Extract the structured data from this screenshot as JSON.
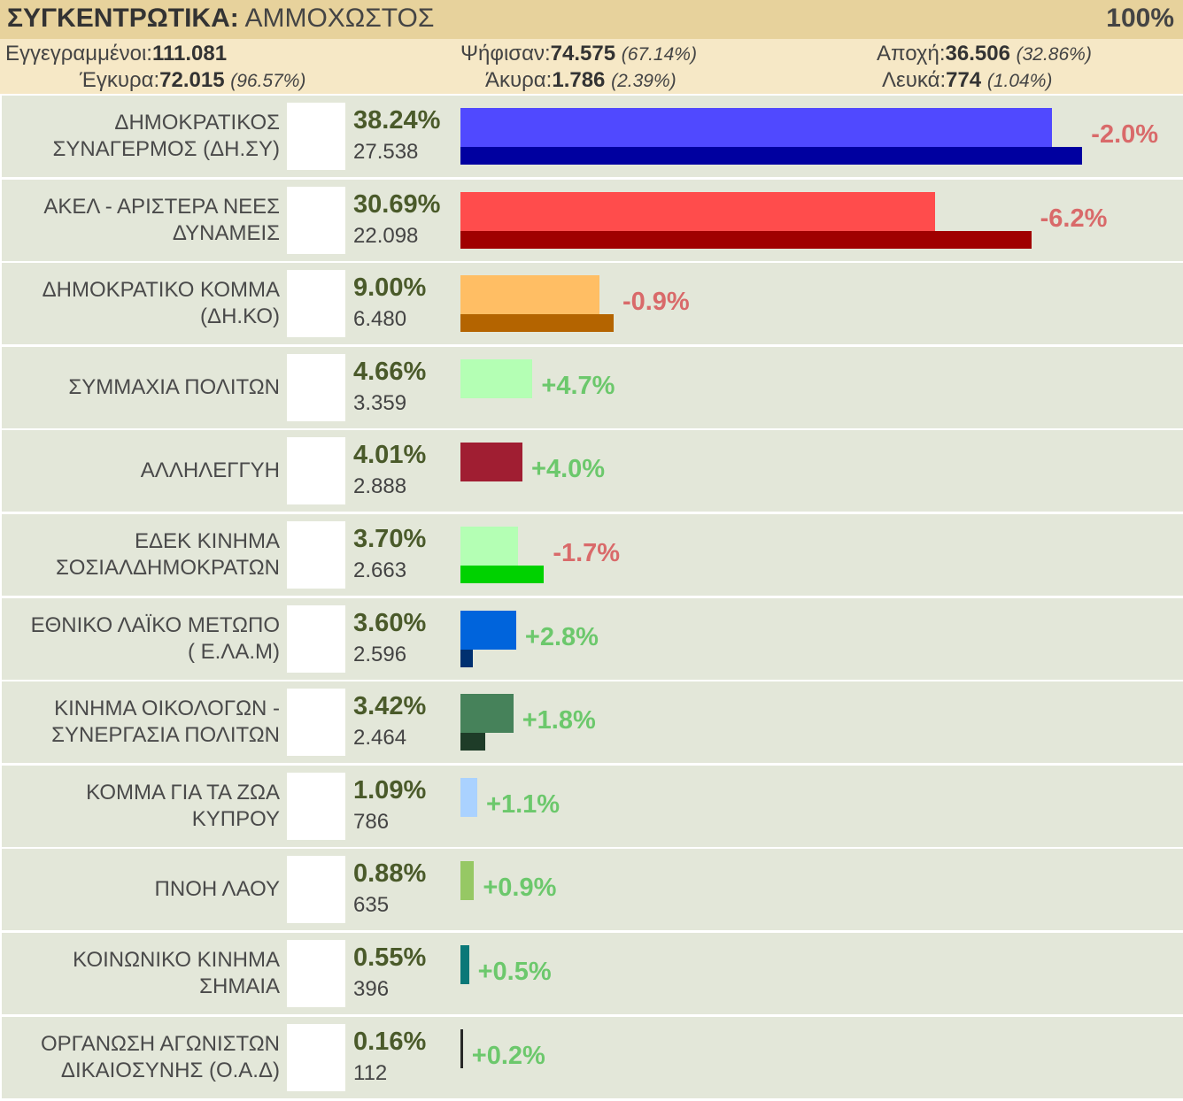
{
  "header": {
    "title_bold": "ΣΥΓΚΕΝΤΡΩΤΙΚΑ:",
    "title_rest": "ΑΜΜΟΧΩΣΤΟΣ",
    "counted": "100%"
  },
  "stats": {
    "registered_label": "Εγγεγραμμένοι:",
    "registered_value": "111.081",
    "voted_label": "Ψήφισαν:",
    "voted_value": "74.575",
    "voted_pct": "(67.14%)",
    "abstention_label": "Αποχή:",
    "abstention_value": "36.506",
    "abstention_pct": "(32.86%)",
    "valid_label": "Έγκυρα:",
    "valid_value": "72.015",
    "valid_pct": "(96.57%)",
    "invalid_label": "Άκυρα:",
    "invalid_value": "1.786",
    "invalid_pct": "(2.39%)",
    "blank_label": "Λευκά:",
    "blank_value": "774",
    "blank_pct": "(1.04%)"
  },
  "chart_data": {
    "type": "bar",
    "categories": [
      "ΔΗΜΟΚΡΑΤΙΚΟΣ ΣΥΝΑΓΕΡΜΟΣ (ΔΗ.ΣΥ)",
      "ΑΚΕΛ - ΑΡΙΣΤΕΡΑ ΝΕΕΣ ΔΥΝΑΜΕΙΣ",
      "ΔΗΜΟΚΡΑΤΙΚΟ ΚΟΜΜΑ (ΔΗ.ΚΟ)",
      "ΣΥΜΜΑΧΙΑ ΠΟΛΙΤΩΝ",
      "ΑΛΛΗΛΕΓΓΥΗ",
      "ΕΔΕΚ ΚΙΝΗΜΑ ΣΟΣΙΑΛΔΗΜΟΚΡΑΤΩΝ",
      "ΕΘΝΙΚΟ ΛΑΪΚΟ ΜΕΤΩΠΟ ( Ε.ΛΑ.Μ)",
      "ΚΙΝΗΜΑ ΟΙΚΟΛΟΓΩΝ - ΣΥΝΕΡΓΑΣΙΑ ΠΟΛΙΤΩΝ",
      "ΚΟΜΜΑ ΓΙΑ ΤΑ ΖΩΑ ΚΥΠΡΟΥ",
      "ΠΝΟΗ ΛΑΟΥ",
      "ΚΟΙΝΩΝΙΚΟ ΚΙΝΗΜΑ ΣΗΜΑΙΑ",
      "ΟΡΓΑΝΩΣΗ ΑΓΩΝΙΣΤΩΝ ΔΙΚΑΙΟΣΥΝΗΣ (Ο.Α.Δ)"
    ],
    "parties": [
      {
        "name_lines": [
          "ΔΗΜΟΚΡΑΤΙΚΟΣ",
          "ΣΥΝΑΓΕΡΜΟΣ (ΔΗ.ΣΥ)"
        ],
        "pct_label": "38.24%",
        "votes_label": "27.538",
        "pct": 38.24,
        "prev_pct": 40.2,
        "change_label": "-2.0%",
        "color": "#5049ff",
        "prev_color": "#0000a0",
        "logo": "dhsy-logo"
      },
      {
        "name_lines": [
          "ΑΚΕΛ - ΑΡΙΣΤΕΡΑ ΝΕΕΣ",
          "ΔΥΝΑΜΕΙΣ"
        ],
        "pct_label": "30.69%",
        "votes_label": "22.098",
        "pct": 30.69,
        "prev_pct": 36.9,
        "change_label": "-6.2%",
        "color": "#ff4c4c",
        "prev_color": "#a00000",
        "logo": "akel-logo"
      },
      {
        "name_lines": [
          "ΔΗΜΟΚΡΑΤΙΚΟ ΚΟΜΜΑ",
          "(ΔΗ.ΚΟ)"
        ],
        "pct_label": "9.00%",
        "votes_label": "6.480",
        "pct": 9.0,
        "prev_pct": 9.9,
        "change_label": "-0.9%",
        "color": "#ffbe64",
        "prev_color": "#b46400",
        "logo": "dhko-logo"
      },
      {
        "name_lines": [
          "ΣΥΜΜΑΧΙΑ ΠΟΛΙΤΩΝ"
        ],
        "pct_label": "4.66%",
        "votes_label": "3.359",
        "pct": 4.66,
        "prev_pct": 0,
        "change_label": "+4.7%",
        "color": "#b4ffb4",
        "prev_color": "#50a050",
        "logo": "symmaxia-logo"
      },
      {
        "name_lines": [
          "ΑΛΛΗΛΕΓΓΥΗ"
        ],
        "pct_label": "4.01%",
        "votes_label": "2.888",
        "pct": 4.01,
        "prev_pct": 0,
        "change_label": "+4.0%",
        "color": "#a01e32",
        "prev_color": "#600010",
        "logo": "allileggyi-logo"
      },
      {
        "name_lines": [
          "ΕΔΕΚ ΚΙΝΗΜΑ",
          "ΣΟΣΙΑΛΔΗΜΟΚΡΑΤΩΝ"
        ],
        "pct_label": "3.70%",
        "votes_label": "2.663",
        "pct": 3.7,
        "prev_pct": 5.4,
        "change_label": "-1.7%",
        "color": "#b4ffb4",
        "prev_color": "#00d200",
        "logo": "edek-logo"
      },
      {
        "name_lines": [
          "ΕΘΝΙΚΟ ΛΑΪΚΟ ΜΕΤΩΠΟ",
          "( Ε.ΛΑ.Μ)"
        ],
        "pct_label": "3.60%",
        "votes_label": "2.596",
        "pct": 3.6,
        "prev_pct": 0.8,
        "change_label": "+2.8%",
        "color": "#0064dc",
        "prev_color": "#003070",
        "logo": "elam-logo"
      },
      {
        "name_lines": [
          "ΚΙΝΗΜΑ ΟΙΚΟΛΟΓΩΝ -",
          "ΣΥΝΕΡΓΑΣΙΑ ΠΟΛΙΤΩΝ"
        ],
        "pct_label": "3.42%",
        "votes_label": "2.464",
        "pct": 3.42,
        "prev_pct": 1.6,
        "change_label": "+1.8%",
        "color": "#46825a",
        "prev_color": "#1e3c28",
        "logo": "oikologoi-logo"
      },
      {
        "name_lines": [
          "ΚΟΜΜΑ ΓΙΑ ΤΑ ΖΩΑ",
          "ΚΥΠΡΟΥ"
        ],
        "pct_label": "1.09%",
        "votes_label": "786",
        "pct": 1.09,
        "prev_pct": 0,
        "change_label": "+1.1%",
        "color": "#aad2ff",
        "prev_color": "#6090c0",
        "logo": "zoa-logo"
      },
      {
        "name_lines": [
          "ΠΝΟΗ ΛΑΟΥ"
        ],
        "pct_label": "0.88%",
        "votes_label": "635",
        "pct": 0.88,
        "prev_pct": 0,
        "change_label": "+0.9%",
        "color": "#96c864",
        "prev_color": "#507030",
        "logo": "pnoi-logo"
      },
      {
        "name_lines": [
          "ΚΟΙΝΩΝΙΚΟ ΚΙΝΗΜΑ",
          "ΣΗΜΑΙΑ"
        ],
        "pct_label": "0.55%",
        "votes_label": "396",
        "pct": 0.55,
        "prev_pct": 0,
        "change_label": "+0.5%",
        "color": "#0a7878",
        "prev_color": "#044040",
        "logo": "simaia-logo"
      },
      {
        "name_lines": [
          "ΟΡΓΑΝΩΣΗ ΑΓΩΝΙΣΤΩΝ",
          "ΔΙΚΑΙΟΣΥΝΗΣ (Ο.Α.Δ)"
        ],
        "pct_label": "0.16%",
        "votes_label": "112",
        "pct": 0.16,
        "prev_pct": 0,
        "change_label": "+0.2%",
        "color": "#282828",
        "prev_color": "#000000",
        "logo": "oad-logo"
      }
    ],
    "colors": {
      "negative_change": "#d96a6a",
      "positive_change": "#6cc86c"
    }
  }
}
